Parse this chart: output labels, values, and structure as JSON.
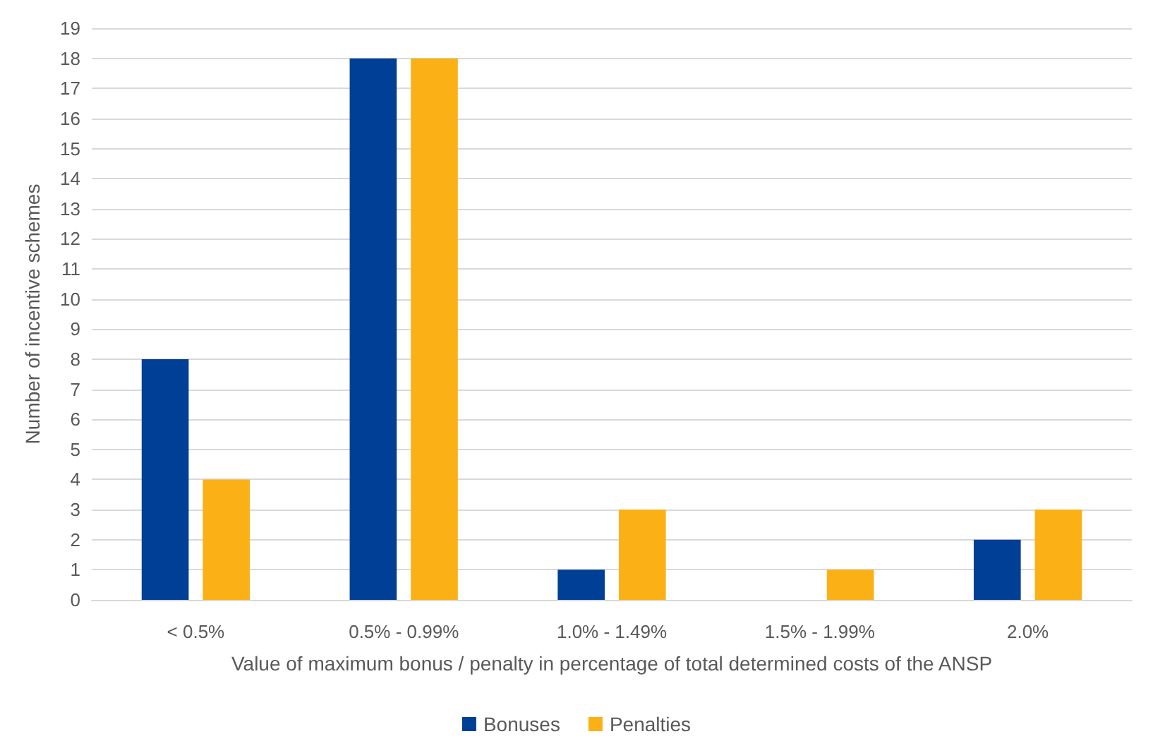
{
  "chart_data": {
    "type": "bar",
    "xlabel": "Value of maximum bonus / penalty in percentage of total determined costs of the ANSP",
    "ylabel": "Number of incentive schemes",
    "categories": [
      "< 0.5%",
      "0.5% - 0.99%",
      "1.0% - 1.49%",
      "1.5% - 1.99%",
      "2.0%"
    ],
    "series": [
      {
        "name": "Bonuses",
        "color": "#003f96",
        "values": [
          8,
          18,
          1,
          0,
          2
        ]
      },
      {
        "name": "Penalties",
        "color": "#fbb116",
        "values": [
          4,
          18,
          3,
          1,
          3
        ]
      }
    ],
    "ylim": [
      0,
      19
    ],
    "yticks": [
      0,
      1,
      2,
      3,
      4,
      5,
      6,
      7,
      8,
      9,
      10,
      11,
      12,
      13,
      14,
      15,
      16,
      17,
      18,
      19
    ],
    "grid": "y",
    "legend": "bottom"
  }
}
